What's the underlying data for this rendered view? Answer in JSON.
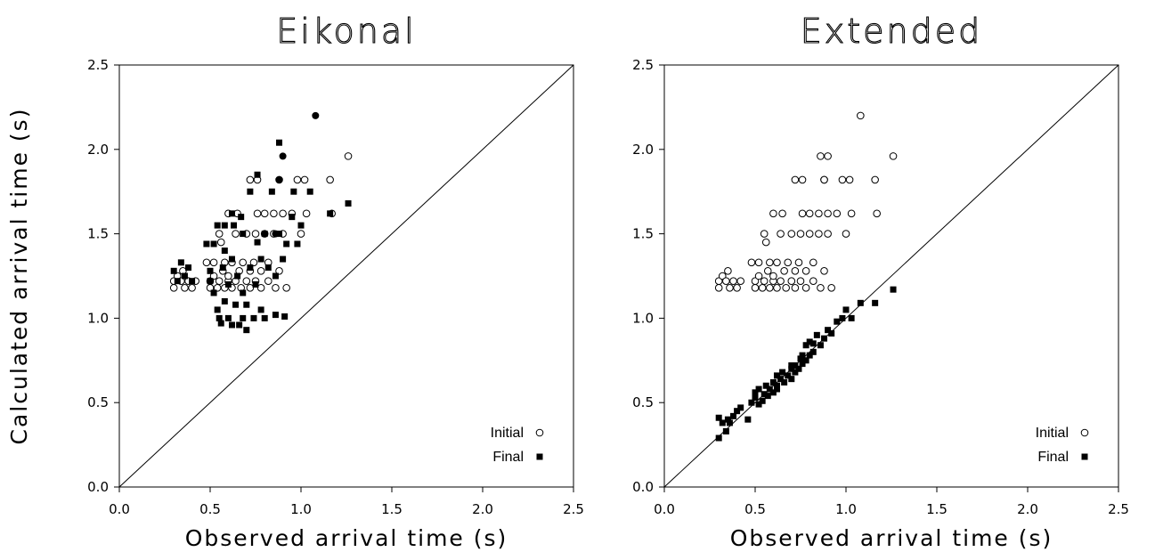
{
  "chart_data": [
    {
      "type": "scatter",
      "title": "Eikonal",
      "xlabel": "Observed arrival time (s)",
      "ylabel": "Calculated arrival time (s)",
      "xlim": [
        0,
        2.5
      ],
      "ylim": [
        0,
        2.5
      ],
      "xticks": [
        "0.0",
        "0.5",
        "1.0",
        "1.5",
        "2.0",
        "2.5"
      ],
      "yticks": [
        "0.0",
        "0.5",
        "1.0",
        "1.5",
        "2.0",
        "2.5"
      ],
      "reference_line": "y = x",
      "legend_position": "bottom-right",
      "series": [
        {
          "name": "Initial",
          "marker": "open-circle",
          "points": [
            [
              0.3,
              1.18
            ],
            [
              0.3,
              1.22
            ],
            [
              0.32,
              1.25
            ],
            [
              0.34,
              1.22
            ],
            [
              0.35,
              1.28
            ],
            [
              0.36,
              1.18
            ],
            [
              0.38,
              1.22
            ],
            [
              0.4,
              1.18
            ],
            [
              0.42,
              1.22
            ],
            [
              0.48,
              1.33
            ],
            [
              0.5,
              1.22
            ],
            [
              0.5,
              1.18
            ],
            [
              0.52,
              1.25
            ],
            [
              0.52,
              1.33
            ],
            [
              0.54,
              1.18
            ],
            [
              0.55,
              1.22
            ],
            [
              0.55,
              1.5
            ],
            [
              0.56,
              1.45
            ],
            [
              0.57,
              1.28
            ],
            [
              0.58,
              1.18
            ],
            [
              0.58,
              1.33
            ],
            [
              0.6,
              1.22
            ],
            [
              0.6,
              1.25
            ],
            [
              0.62,
              1.18
            ],
            [
              0.62,
              1.33
            ],
            [
              0.64,
              1.22
            ],
            [
              0.65,
              1.62
            ],
            [
              0.66,
              1.28
            ],
            [
              0.67,
              1.18
            ],
            [
              0.68,
              1.33
            ],
            [
              0.7,
              1.22
            ],
            [
              0.7,
              1.5
            ],
            [
              0.72,
              1.28
            ],
            [
              0.72,
              1.18
            ],
            [
              0.74,
              1.33
            ],
            [
              0.75,
              1.22
            ],
            [
              0.75,
              1.5
            ],
            [
              0.76,
              1.62
            ],
            [
              0.78,
              1.28
            ],
            [
              0.78,
              1.18
            ],
            [
              0.8,
              1.5
            ],
            [
              0.8,
              1.62
            ],
            [
              0.82,
              1.22
            ],
            [
              0.82,
              1.33
            ],
            [
              0.85,
              1.5
            ],
            [
              0.85,
              1.62
            ],
            [
              0.86,
              1.18
            ],
            [
              0.88,
              1.28
            ],
            [
              0.88,
              1.82
            ],
            [
              0.9,
              1.5
            ],
            [
              0.9,
              1.62
            ],
            [
              0.92,
              1.18
            ],
            [
              0.95,
              1.62
            ],
            [
              0.98,
              1.82
            ],
            [
              1.0,
              1.5
            ],
            [
              1.02,
              1.82
            ],
            [
              1.03,
              1.62
            ],
            [
              1.16,
              1.82
            ],
            [
              1.17,
              1.62
            ],
            [
              1.26,
              1.96
            ],
            [
              0.72,
              1.82
            ],
            [
              0.76,
              1.82
            ],
            [
              0.64,
              1.5
            ],
            [
              0.6,
              1.62
            ]
          ]
        },
        {
          "name": "Final",
          "marker": "filled-square",
          "points": [
            [
              0.3,
              1.28
            ],
            [
              0.32,
              1.22
            ],
            [
              0.34,
              1.33
            ],
            [
              0.36,
              1.25
            ],
            [
              0.38,
              1.3
            ],
            [
              0.4,
              1.22
            ],
            [
              0.48,
              1.44
            ],
            [
              0.5,
              1.28
            ],
            [
              0.5,
              1.22
            ],
            [
              0.52,
              1.44
            ],
            [
              0.52,
              1.15
            ],
            [
              0.54,
              1.05
            ],
            [
              0.54,
              1.55
            ],
            [
              0.55,
              1.0
            ],
            [
              0.56,
              0.97
            ],
            [
              0.57,
              1.3
            ],
            [
              0.58,
              1.1
            ],
            [
              0.58,
              1.4
            ],
            [
              0.6,
              1.0
            ],
            [
              0.6,
              1.2
            ],
            [
              0.62,
              0.96
            ],
            [
              0.62,
              1.35
            ],
            [
              0.63,
              1.55
            ],
            [
              0.64,
              1.08
            ],
            [
              0.65,
              1.25
            ],
            [
              0.66,
              0.96
            ],
            [
              0.67,
              1.6
            ],
            [
              0.68,
              1.15
            ],
            [
              0.68,
              1.0
            ],
            [
              0.7,
              0.93
            ],
            [
              0.7,
              1.08
            ],
            [
              0.72,
              1.3
            ],
            [
              0.72,
              1.75
            ],
            [
              0.74,
              1.0
            ],
            [
              0.75,
              1.2
            ],
            [
              0.76,
              1.45
            ],
            [
              0.78,
              1.05
            ],
            [
              0.78,
              1.35
            ],
            [
              0.8,
              1.0
            ],
            [
              0.8,
              1.5
            ],
            [
              0.82,
              1.3
            ],
            [
              0.84,
              1.75
            ],
            [
              0.86,
              1.25
            ],
            [
              0.86,
              1.02
            ],
            [
              0.88,
              2.04
            ],
            [
              0.88,
              1.5
            ],
            [
              0.9,
              1.35
            ],
            [
              0.91,
              1.01
            ],
            [
              0.92,
              1.44
            ],
            [
              0.95,
              1.6
            ],
            [
              0.96,
              1.75
            ],
            [
              0.98,
              1.44
            ],
            [
              1.0,
              1.55
            ],
            [
              1.05,
              1.75
            ],
            [
              1.16,
              1.62
            ],
            [
              1.26,
              1.68
            ],
            [
              0.68,
              1.5
            ],
            [
              0.62,
              1.62
            ],
            [
              0.58,
              1.55
            ],
            [
              0.76,
              1.85
            ]
          ]
        },
        {
          "name": "",
          "marker": "filled-circle",
          "points": [
            [
              1.08,
              2.2
            ],
            [
              0.9,
              1.96
            ],
            [
              0.88,
              1.82
            ],
            [
              0.86,
              1.5
            ]
          ]
        }
      ]
    },
    {
      "type": "scatter",
      "title": "Extended",
      "xlabel": "Observed arrival time (s)",
      "ylabel": "",
      "xlim": [
        0,
        2.5
      ],
      "ylim": [
        0,
        2.5
      ],
      "xticks": [
        "0.0",
        "0.5",
        "1.0",
        "1.5",
        "2.0",
        "2.5"
      ],
      "yticks": [
        "0.0",
        "0.5",
        "1.0",
        "1.5",
        "2.0",
        "2.5"
      ],
      "reference_line": "y = x",
      "legend_position": "bottom-right",
      "series": [
        {
          "name": "Initial",
          "marker": "open-circle",
          "points": [
            [
              0.3,
              1.18
            ],
            [
              0.3,
              1.22
            ],
            [
              0.32,
              1.25
            ],
            [
              0.34,
              1.22
            ],
            [
              0.35,
              1.28
            ],
            [
              0.36,
              1.18
            ],
            [
              0.38,
              1.22
            ],
            [
              0.4,
              1.18
            ],
            [
              0.42,
              1.22
            ],
            [
              0.48,
              1.33
            ],
            [
              0.5,
              1.22
            ],
            [
              0.5,
              1.18
            ],
            [
              0.52,
              1.25
            ],
            [
              0.52,
              1.33
            ],
            [
              0.54,
              1.18
            ],
            [
              0.55,
              1.22
            ],
            [
              0.55,
              1.5
            ],
            [
              0.56,
              1.45
            ],
            [
              0.57,
              1.28
            ],
            [
              0.58,
              1.18
            ],
            [
              0.58,
              1.33
            ],
            [
              0.6,
              1.22
            ],
            [
              0.6,
              1.25
            ],
            [
              0.62,
              1.18
            ],
            [
              0.62,
              1.33
            ],
            [
              0.64,
              1.22
            ],
            [
              0.65,
              1.62
            ],
            [
              0.66,
              1.28
            ],
            [
              0.67,
              1.18
            ],
            [
              0.68,
              1.33
            ],
            [
              0.7,
              1.22
            ],
            [
              0.7,
              1.5
            ],
            [
              0.72,
              1.28
            ],
            [
              0.72,
              1.18
            ],
            [
              0.74,
              1.33
            ],
            [
              0.75,
              1.22
            ],
            [
              0.75,
              1.5
            ],
            [
              0.76,
              1.62
            ],
            [
              0.78,
              1.28
            ],
            [
              0.78,
              1.18
            ],
            [
              0.8,
              1.5
            ],
            [
              0.8,
              1.62
            ],
            [
              0.82,
              1.22
            ],
            [
              0.82,
              1.33
            ],
            [
              0.85,
              1.5
            ],
            [
              0.85,
              1.62
            ],
            [
              0.86,
              1.18
            ],
            [
              0.88,
              1.28
            ],
            [
              0.88,
              1.82
            ],
            [
              0.9,
              1.5
            ],
            [
              0.9,
              1.62
            ],
            [
              0.92,
              1.18
            ],
            [
              0.95,
              1.62
            ],
            [
              0.98,
              1.82
            ],
            [
              1.0,
              1.5
            ],
            [
              1.02,
              1.82
            ],
            [
              1.03,
              1.62
            ],
            [
              1.16,
              1.82
            ],
            [
              1.17,
              1.62
            ],
            [
              1.26,
              1.96
            ],
            [
              0.72,
              1.82
            ],
            [
              0.76,
              1.82
            ],
            [
              0.64,
              1.5
            ],
            [
              0.6,
              1.62
            ],
            [
              0.86,
              1.96
            ],
            [
              0.9,
              1.96
            ],
            [
              1.08,
              2.2
            ],
            [
              0.88,
              1.82
            ]
          ]
        },
        {
          "name": "Final",
          "marker": "filled-square",
          "points": [
            [
              0.3,
              0.29
            ],
            [
              0.3,
              0.41
            ],
            [
              0.32,
              0.38
            ],
            [
              0.34,
              0.33
            ],
            [
              0.35,
              0.4
            ],
            [
              0.36,
              0.38
            ],
            [
              0.38,
              0.42
            ],
            [
              0.4,
              0.45
            ],
            [
              0.42,
              0.47
            ],
            [
              0.46,
              0.4
            ],
            [
              0.48,
              0.5
            ],
            [
              0.5,
              0.53
            ],
            [
              0.5,
              0.56
            ],
            [
              0.52,
              0.49
            ],
            [
              0.52,
              0.58
            ],
            [
              0.54,
              0.51
            ],
            [
              0.55,
              0.55
            ],
            [
              0.56,
              0.6
            ],
            [
              0.57,
              0.54
            ],
            [
              0.58,
              0.58
            ],
            [
              0.6,
              0.62
            ],
            [
              0.6,
              0.56
            ],
            [
              0.62,
              0.6
            ],
            [
              0.62,
              0.66
            ],
            [
              0.64,
              0.64
            ],
            [
              0.65,
              0.68
            ],
            [
              0.66,
              0.62
            ],
            [
              0.68,
              0.66
            ],
            [
              0.7,
              0.7
            ],
            [
              0.7,
              0.64
            ],
            [
              0.72,
              0.72
            ],
            [
              0.72,
              0.68
            ],
            [
              0.74,
              0.7
            ],
            [
              0.75,
              0.76
            ],
            [
              0.76,
              0.73
            ],
            [
              0.78,
              0.75
            ],
            [
              0.78,
              0.84
            ],
            [
              0.8,
              0.78
            ],
            [
              0.8,
              0.86
            ],
            [
              0.82,
              0.8
            ],
            [
              0.84,
              0.9
            ],
            [
              0.86,
              0.84
            ],
            [
              0.88,
              0.88
            ],
            [
              0.9,
              0.93
            ],
            [
              0.92,
              0.91
            ],
            [
              0.95,
              0.98
            ],
            [
              0.98,
              1.0
            ],
            [
              1.0,
              1.05
            ],
            [
              1.03,
              1.0
            ],
            [
              1.08,
              1.09
            ],
            [
              1.16,
              1.09
            ],
            [
              1.26,
              1.17
            ],
            [
              0.62,
              0.58
            ],
            [
              0.7,
              0.72
            ],
            [
              0.76,
              0.78
            ],
            [
              0.82,
              0.85
            ]
          ]
        }
      ]
    }
  ]
}
